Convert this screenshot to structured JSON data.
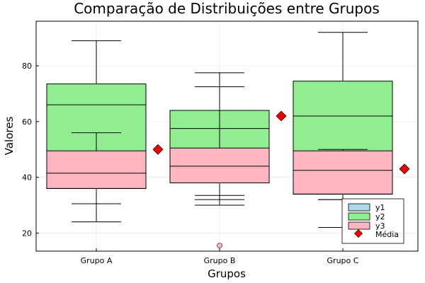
{
  "chart_data": {
    "type": "boxplot",
    "title": "Comparação de Distribuições entre Grupos",
    "xlabel": "Grupos",
    "ylabel": "Valores",
    "categories": [
      "Grupo A",
      "Grupo B",
      "Grupo C"
    ],
    "ylim": [
      13.5,
      96
    ],
    "yticks": [
      20,
      40,
      60,
      80
    ],
    "grid": true,
    "legend_position": "bottom-right",
    "series": [
      {
        "name": "y1",
        "color": "#add8e6",
        "boxes": [
          {
            "whisker_low": 30.5,
            "q1": 36,
            "median": 56,
            "q3": 56.5,
            "whisker_high": 68.5
          },
          {
            "whisker_low": 33.5,
            "q1": 38,
            "median": 51,
            "q3": 51.2,
            "whisker_high": 60
          },
          {
            "whisker_low": 32,
            "q1": 34,
            "median": 52,
            "q3": 52.2,
            "whisker_high": 64.5
          }
        ]
      },
      {
        "name": "y2",
        "color": "#90ee90",
        "boxes": [
          {
            "whisker_low": 24,
            "q1": 36,
            "median": 66,
            "q3": 73.5,
            "whisker_high": 89
          },
          {
            "whisker_low": 30,
            "q1": 38,
            "median": 57.5,
            "q3": 64,
            "whisker_high": 77.5
          },
          {
            "whisker_low": 22,
            "q1": 34,
            "median": 62,
            "q3": 74.5,
            "whisker_high": 92
          }
        ]
      },
      {
        "name": "y3",
        "color": "#ffb6c1",
        "boxes": [
          {
            "whisker_low": 30.5,
            "q1": 36,
            "median": 41.5,
            "q3": 49.5,
            "whisker_high": 56
          },
          {
            "whisker_low": 32,
            "q1": 38,
            "median": 44,
            "q3": 50.5,
            "whisker_high": 72.5,
            "outliers": [
              15.5
            ]
          },
          {
            "whisker_low": 32,
            "q1": 34,
            "median": 42.5,
            "q3": 49.5,
            "whisker_high": 50
          }
        ]
      }
    ],
    "means": {
      "name": "Média",
      "color": "#ee0000",
      "values": [
        50,
        62,
        43
      ]
    }
  }
}
